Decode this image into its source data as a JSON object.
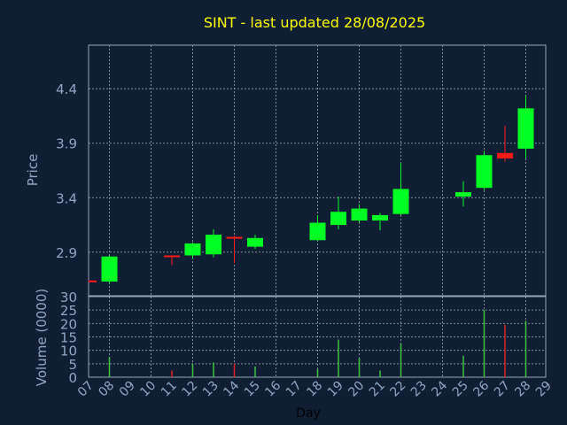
{
  "chart_data": [
    {
      "type": "candlestick",
      "title": "SINT - last updated 28/08/2025",
      "ylabel": "Price",
      "ylim": [
        2.5,
        4.8
      ],
      "yticks": [
        "2.9",
        "3.4",
        "3.9",
        "4.4"
      ],
      "grid": true,
      "candles": [
        {
          "day": "07",
          "open": 2.64,
          "close": 2.63,
          "high": 2.64,
          "low": 2.63
        },
        {
          "day": "08",
          "open": 2.63,
          "close": 2.86,
          "high": 2.87,
          "low": 2.61
        },
        {
          "day": "11",
          "open": 2.87,
          "close": 2.86,
          "high": 2.87,
          "low": 2.78
        },
        {
          "day": "12",
          "open": 2.87,
          "close": 2.98,
          "high": 2.99,
          "low": 2.84
        },
        {
          "day": "13",
          "open": 2.88,
          "close": 3.06,
          "high": 3.11,
          "low": 2.85
        },
        {
          "day": "14",
          "open": 3.04,
          "close": 3.03,
          "high": 3.05,
          "low": 2.8
        },
        {
          "day": "15",
          "open": 2.95,
          "close": 3.03,
          "high": 3.06,
          "low": 2.93
        },
        {
          "day": "18",
          "open": 3.01,
          "close": 3.17,
          "high": 3.24,
          "low": 3.0
        },
        {
          "day": "19",
          "open": 3.15,
          "close": 3.27,
          "high": 3.41,
          "low": 3.11
        },
        {
          "day": "20",
          "open": 3.19,
          "close": 3.3,
          "high": 3.34,
          "low": 3.17
        },
        {
          "day": "21",
          "open": 3.19,
          "close": 3.24,
          "high": 3.26,
          "low": 3.1
        },
        {
          "day": "22",
          "open": 3.25,
          "close": 3.48,
          "high": 3.72,
          "low": 3.24
        },
        {
          "day": "25",
          "open": 3.41,
          "close": 3.45,
          "high": 3.55,
          "low": 3.32
        },
        {
          "day": "26",
          "open": 3.49,
          "close": 3.79,
          "high": 3.83,
          "low": 3.47
        },
        {
          "day": "27",
          "open": 3.81,
          "close": 3.76,
          "high": 4.06,
          "low": 3.73
        },
        {
          "day": "28",
          "open": 3.85,
          "close": 4.22,
          "high": 4.34,
          "low": 3.76
        }
      ]
    },
    {
      "type": "bar",
      "xlabel": "Day",
      "ylabel": "Volume (0000)",
      "ylim": [
        0,
        30
      ],
      "yticks": [
        "0",
        "5",
        "10",
        "15",
        "20",
        "25",
        "30"
      ],
      "categories": [
        "07",
        "08",
        "09",
        "10",
        "11",
        "12",
        "13",
        "14",
        "15",
        "16",
        "17",
        "18",
        "19",
        "20",
        "21",
        "22",
        "23",
        "24",
        "25",
        "26",
        "27",
        "28",
        "29"
      ],
      "values": [
        0,
        7.5,
        0,
        0,
        2.5,
        5,
        5.5,
        5,
        4,
        0,
        0,
        3,
        14,
        7,
        2.5,
        12.5,
        0,
        0,
        8,
        25,
        19.5,
        21,
        0
      ],
      "direction": [
        "down",
        "up",
        "",
        "",
        "down",
        "up",
        "up",
        "down",
        "up",
        "",
        "",
        "up",
        "up",
        "up",
        "up",
        "up",
        "",
        "",
        "up",
        "up",
        "down",
        "up",
        ""
      ]
    }
  ],
  "colors": {
    "up": "#00ff22",
    "down": "#ff1a1a",
    "up_volume": "#3cc43c",
    "down_volume": "#e02020",
    "background": "#0f1e33",
    "grid": "#9aa7b8",
    "title": "#ffff00",
    "axis_text": "#8fa6c6"
  }
}
